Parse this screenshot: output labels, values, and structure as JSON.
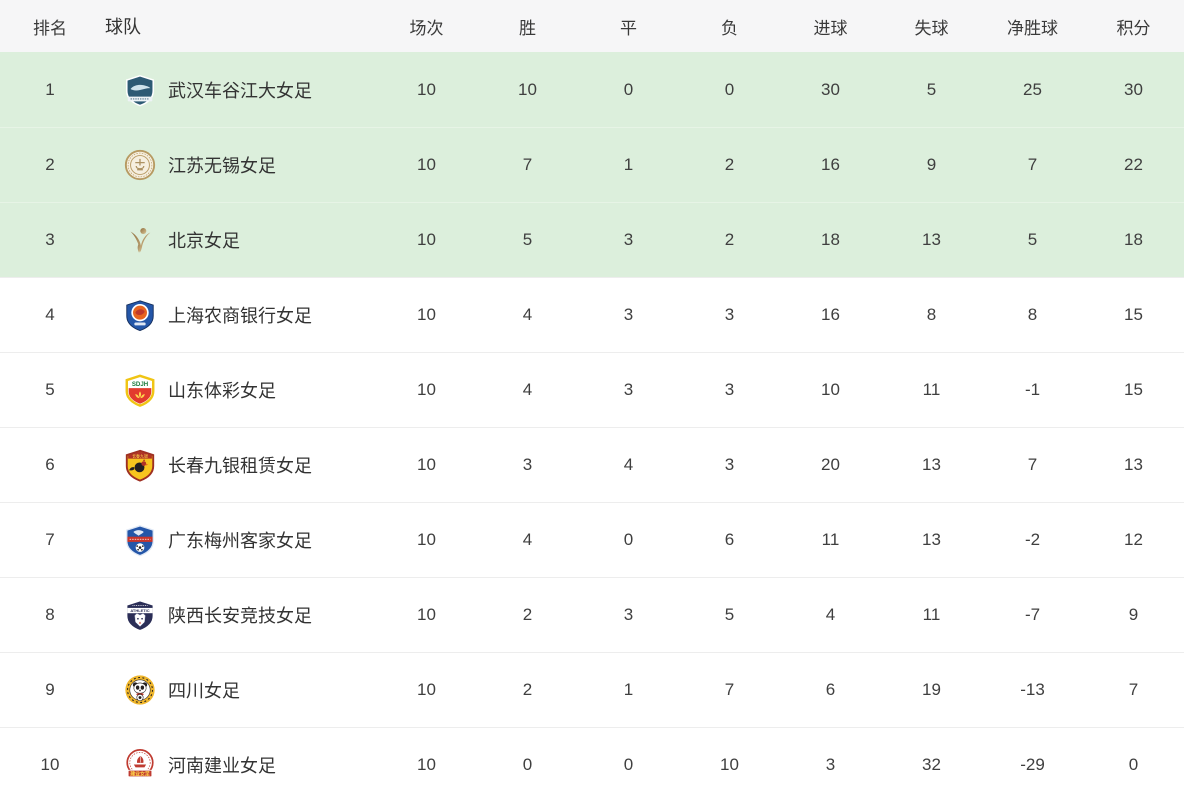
{
  "table": {
    "columns": [
      {
        "key": "rank",
        "label": "排名"
      },
      {
        "key": "team",
        "label": "球队"
      },
      {
        "key": "played",
        "label": "场次"
      },
      {
        "key": "win",
        "label": "胜"
      },
      {
        "key": "draw",
        "label": "平"
      },
      {
        "key": "loss",
        "label": "负"
      },
      {
        "key": "goals_for",
        "label": "进球"
      },
      {
        "key": "goals_against",
        "label": "失球"
      },
      {
        "key": "goal_diff",
        "label": "净胜球"
      },
      {
        "key": "points",
        "label": "积分"
      }
    ],
    "rows": [
      {
        "rank": 1,
        "team": "武汉车谷江大女足",
        "played": 10,
        "win": 10,
        "draw": 0,
        "loss": 0,
        "goals_for": 30,
        "goals_against": 5,
        "goal_diff": 25,
        "points": 30,
        "highlighted": true,
        "logo": {
          "id": "wuhan",
          "primary": "#2d5a74",
          "secondary": "#cfe3ec",
          "accent": "#eef3f6"
        }
      },
      {
        "rank": 2,
        "team": "江苏无锡女足",
        "played": 10,
        "win": 7,
        "draw": 1,
        "loss": 2,
        "goals_for": 16,
        "goals_against": 9,
        "goal_diff": 7,
        "points": 22,
        "highlighted": true,
        "logo": {
          "id": "jiangsu",
          "primary": "#b79a62",
          "secondary": "#f6efdf",
          "accent": "#ad9262"
        }
      },
      {
        "rank": 3,
        "team": "北京女足",
        "played": 10,
        "win": 5,
        "draw": 3,
        "loss": 2,
        "goals_for": 18,
        "goals_against": 13,
        "goal_diff": 5,
        "points": 18,
        "highlighted": true,
        "logo": {
          "id": "beijing",
          "primary": "#8f6f3f",
          "secondary": "#d9c393"
        }
      },
      {
        "rank": 4,
        "team": "上海农商银行女足",
        "played": 10,
        "win": 4,
        "draw": 3,
        "loss": 3,
        "goals_for": 16,
        "goals_against": 8,
        "goal_diff": 8,
        "points": 15,
        "highlighted": false,
        "logo": {
          "id": "shanghai",
          "primary": "#2456a8",
          "secondary": "#e8641f",
          "accent": "#c0392b"
        }
      },
      {
        "rank": 5,
        "team": "山东体彩女足",
        "played": 10,
        "win": 4,
        "draw": 3,
        "loss": 3,
        "goals_for": 10,
        "goals_against": 11,
        "goal_diff": -1,
        "points": 15,
        "highlighted": false,
        "logo": {
          "id": "shandong",
          "primary": "#f0c514",
          "secondary": "#e23b2e",
          "accent": "#1a7a3c",
          "text": "SDJH",
          "flower": "#ffd84d"
        }
      },
      {
        "rank": 6,
        "team": "长春九银租赁女足",
        "played": 10,
        "win": 3,
        "draw": 4,
        "loss": 3,
        "goals_for": 20,
        "goals_against": 13,
        "goal_diff": 7,
        "points": 13,
        "highlighted": false,
        "logo": {
          "id": "changchun",
          "primary": "#f7c51e",
          "secondary": "#9e2f22",
          "accent": "#231f20",
          "band": "#b03226",
          "text": "长春九银"
        }
      },
      {
        "rank": 7,
        "team": "广东梅州客家女足",
        "played": 10,
        "win": 4,
        "draw": 0,
        "loss": 6,
        "goals_for": 11,
        "goals_against": 13,
        "goal_diff": -2,
        "points": 12,
        "highlighted": false,
        "logo": {
          "id": "meizhou",
          "primary": "#2456a8",
          "secondary": "#c9342a",
          "accent": "#dfe8f5"
        }
      },
      {
        "rank": 8,
        "team": "陕西长安竞技女足",
        "played": 10,
        "win": 2,
        "draw": 3,
        "loss": 5,
        "goals_for": 4,
        "goals_against": 11,
        "goal_diff": -7,
        "points": 9,
        "highlighted": false,
        "logo": {
          "id": "shaanxi",
          "primary": "#2b2e57",
          "secondary": "#c9342a",
          "text": "ATHLETIC"
        }
      },
      {
        "rank": 9,
        "team": "四川女足",
        "played": 10,
        "win": 2,
        "draw": 1,
        "loss": 7,
        "goals_for": 6,
        "goals_against": 19,
        "goal_diff": -13,
        "points": 7,
        "highlighted": false,
        "logo": {
          "id": "sichuan",
          "primary": "#efb62c",
          "secondary": "#231f20",
          "accent": "#c0392b"
        }
      },
      {
        "rank": 10,
        "team": "河南建业女足",
        "played": 10,
        "win": 0,
        "draw": 0,
        "loss": 10,
        "goals_for": 3,
        "goals_against": 32,
        "goal_diff": -29,
        "points": 0,
        "highlighted": false,
        "logo": {
          "id": "henan",
          "primary": "#bf3b31",
          "secondary": "#ffd84d",
          "text": "建业女足"
        }
      }
    ]
  },
  "colors": {
    "highlight_row_bg": "#dcefdc",
    "header_bg": "#f6f6f7",
    "row_divider": "#ededed",
    "highlight_row_divider": "#e7f4e6",
    "text": "#3f3f3f",
    "team_text": "#333333"
  }
}
